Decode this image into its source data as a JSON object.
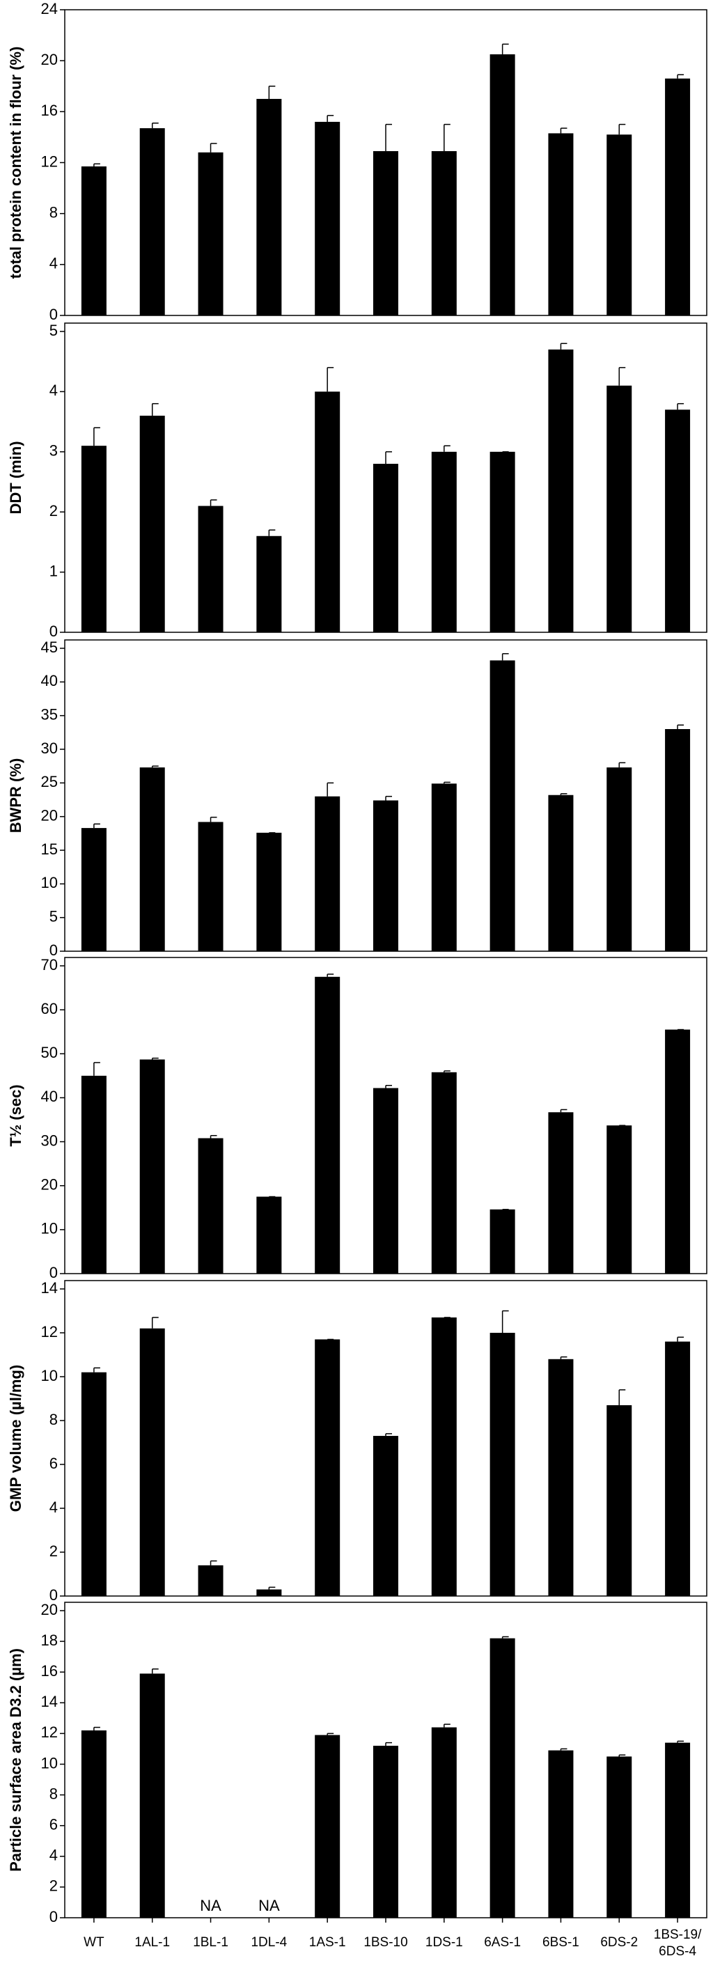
{
  "chart_data": [
    {
      "type": "bar",
      "y_label": "total protein content in flour (%)",
      "color": "#000000",
      "values": [
        11.7,
        14.7,
        12.8,
        17.0,
        15.2,
        12.9,
        12.9,
        20.5,
        14.3,
        14.2,
        18.6
      ],
      "errors": [
        0.2,
        0.4,
        0.7,
        1.0,
        0.5,
        2.1,
        2.1,
        0.8,
        0.4,
        0.8,
        0.3
      ],
      "ylim": [
        0,
        24
      ],
      "yticks": [
        0,
        4,
        8,
        12,
        16,
        20,
        24
      ]
    },
    {
      "type": "bar",
      "y_label": "DDT (min)",
      "color": "#000000",
      "values": [
        3.1,
        3.6,
        2.1,
        1.6,
        4.0,
        2.8,
        3.0,
        3.0,
        4.7,
        4.1,
        3.7
      ],
      "errors": [
        0.3,
        0.2,
        0.1,
        0.1,
        0.4,
        0.2,
        0.1,
        0,
        0.1,
        0.3,
        0.1
      ],
      "ylim": [
        0,
        5
      ],
      "yticks": [
        0,
        1,
        2,
        3,
        4,
        5
      ]
    },
    {
      "type": "bar",
      "y_label": "BWPR (%)",
      "color": "#000000",
      "values": [
        18.3,
        27.3,
        19.2,
        17.6,
        23.0,
        22.4,
        24.9,
        43.2,
        23.2,
        27.3,
        33.0
      ],
      "errors": [
        0.6,
        0.2,
        0.7,
        0,
        2.0,
        0.6,
        0.2,
        1.0,
        0.2,
        0.7,
        0.6
      ],
      "ylim": [
        0,
        45
      ],
      "yticks": [
        0,
        5,
        10,
        15,
        20,
        25,
        30,
        35,
        40,
        45
      ]
    },
    {
      "type": "bar",
      "y_label": "T½ (sec)",
      "color": "#000000",
      "values": [
        45.0,
        48.7,
        30.8,
        17.5,
        67.5,
        42.2,
        45.8,
        14.6,
        36.7,
        33.7,
        55.5
      ],
      "errors": [
        3.0,
        0.3,
        0.6,
        0,
        0.6,
        0.6,
        0.3,
        0,
        0.6,
        0,
        0
      ],
      "ylim": [
        0,
        70
      ],
      "yticks": [
        0,
        10,
        20,
        30,
        40,
        50,
        60,
        70
      ]
    },
    {
      "type": "bar",
      "y_label": "GMP volume (µl/mg)",
      "color": "#000000",
      "values": [
        10.2,
        12.2,
        1.4,
        0.3,
        11.7,
        7.3,
        12.7,
        12.0,
        10.8,
        8.7,
        11.6
      ],
      "errors": [
        0.2,
        0.5,
        0.2,
        0.1,
        0,
        0.1,
        0,
        1.0,
        0.1,
        0.7,
        0.2
      ],
      "ylim": [
        0,
        14
      ],
      "yticks": [
        0,
        2,
        4,
        6,
        8,
        10,
        12,
        14
      ]
    },
    {
      "type": "bar",
      "y_label": "Particle surface area D3.2 (µm)",
      "color": "#000000",
      "categories": [
        "WT",
        "1AL-1",
        "1BL-1",
        "1DL-4",
        "1AS-1",
        "1BS-10",
        "1DS-1",
        "6AS-1",
        "6BS-1",
        "6DS-2",
        "1BS-19/6DS-4"
      ],
      "values": [
        12.2,
        15.9,
        null,
        null,
        11.9,
        11.2,
        12.4,
        18.2,
        10.9,
        10.5,
        11.4
      ],
      "value_labels": [
        null,
        null,
        "NA",
        "NA",
        null,
        null,
        null,
        null,
        null,
        null,
        null
      ],
      "errors": [
        0.2,
        0.3,
        null,
        null,
        0.1,
        0.2,
        0.2,
        0.1,
        0.1,
        0.1,
        0.1
      ],
      "ylim": [
        0,
        20
      ],
      "yticks": [
        0,
        2,
        4,
        6,
        8,
        10,
        12,
        14,
        16,
        18,
        20
      ]
    }
  ]
}
